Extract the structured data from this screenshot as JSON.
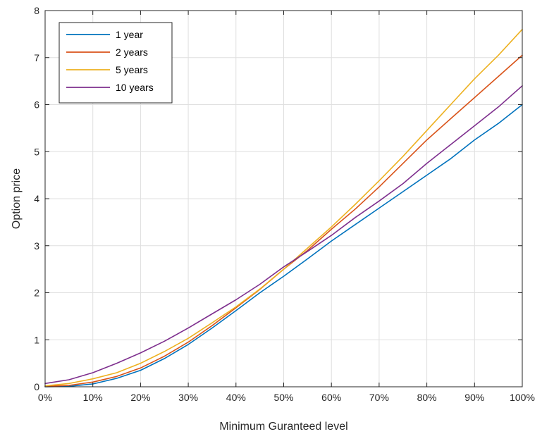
{
  "chart_data": {
    "type": "line",
    "xlabel": "Minimum Guranteed level",
    "ylabel": "Option price",
    "xlim": [
      0,
      100
    ],
    "ylim": [
      0,
      8
    ],
    "x_ticks": [
      0,
      10,
      20,
      30,
      40,
      50,
      60,
      70,
      80,
      90,
      100
    ],
    "x_tick_labels": [
      "0%",
      "10%",
      "20%",
      "30%",
      "40%",
      "50%",
      "60%",
      "70%",
      "80%",
      "90%",
      "100%"
    ],
    "y_ticks": [
      0,
      1,
      2,
      3,
      4,
      5,
      6,
      7,
      8
    ],
    "y_tick_labels": [
      "0",
      "1",
      "2",
      "3",
      "4",
      "5",
      "6",
      "7",
      "8"
    ],
    "grid": true,
    "legend_position": "top-left",
    "x": [
      0,
      5,
      10,
      15,
      20,
      25,
      30,
      35,
      40,
      45,
      50,
      55,
      60,
      65,
      70,
      75,
      80,
      85,
      90,
      95,
      100
    ],
    "series": [
      {
        "name": "1 year",
        "color": "#0072BD",
        "values": [
          0.0,
          0.01,
          0.06,
          0.18,
          0.35,
          0.6,
          0.9,
          1.25,
          1.62,
          2.0,
          2.35,
          2.72,
          3.1,
          3.45,
          3.8,
          4.15,
          4.5,
          4.85,
          5.25,
          5.6,
          6.0
        ]
      },
      {
        "name": "2 years",
        "color": "#D95319",
        "values": [
          0.01,
          0.03,
          0.1,
          0.22,
          0.4,
          0.65,
          0.95,
          1.3,
          1.68,
          2.07,
          2.5,
          2.9,
          3.35,
          3.78,
          4.25,
          4.75,
          5.25,
          5.7,
          6.15,
          6.6,
          7.05
        ]
      },
      {
        "name": "5 years",
        "color": "#EDB120",
        "values": [
          0.02,
          0.07,
          0.17,
          0.3,
          0.5,
          0.75,
          1.03,
          1.36,
          1.7,
          2.08,
          2.5,
          2.95,
          3.4,
          3.88,
          4.38,
          4.9,
          5.45,
          6.0,
          6.55,
          7.05,
          7.6
        ]
      },
      {
        "name": "10 years",
        "color": "#7E2F8E",
        "values": [
          0.07,
          0.15,
          0.3,
          0.5,
          0.72,
          0.97,
          1.25,
          1.55,
          1.85,
          2.18,
          2.55,
          2.88,
          3.22,
          3.6,
          3.95,
          4.32,
          4.75,
          5.15,
          5.55,
          5.95,
          6.4
        ]
      }
    ]
  }
}
